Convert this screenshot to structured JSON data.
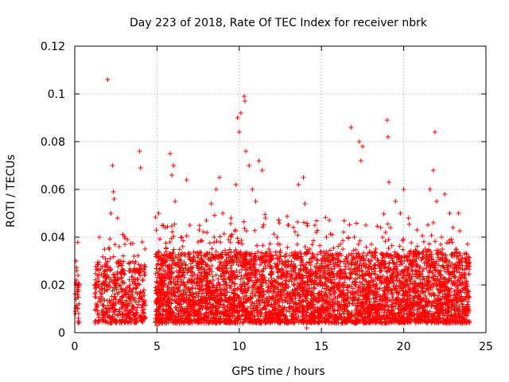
{
  "chart_data": {
    "type": "scatter",
    "title": "Day 223 of 2018, Rate Of TEC Index for receiver nbrk",
    "xlabel": "GPS time / hours",
    "ylabel": "ROTI / TECUs",
    "xlim": [
      0,
      25
    ],
    "ylim": [
      0,
      0.12
    ],
    "x_ticks": [
      0,
      5,
      10,
      15,
      20,
      25
    ],
    "x_tick_labels": [
      "0",
      "5",
      "10",
      "15",
      "20",
      "25"
    ],
    "y_ticks": [
      0,
      0.02,
      0.04,
      0.06,
      0.08,
      0.1,
      0.12
    ],
    "y_tick_labels": [
      "0",
      "0.02",
      "0.04",
      "0.06",
      "0.08",
      "0.1",
      "0.12"
    ],
    "grid": true,
    "marker": "+",
    "series": [
      {
        "name": "ROTI",
        "color": "#ff0000",
        "points": [
          [
            0.05,
            0.008
          ],
          [
            0.08,
            0.014
          ],
          [
            0.1,
            0.022
          ],
          [
            0.12,
            0.026
          ],
          [
            0.15,
            0.018
          ],
          [
            0.18,
            0.01
          ],
          [
            0.2,
            0.024
          ],
          [
            0.22,
            0.006
          ],
          [
            1.3,
            0.012
          ],
          [
            1.4,
            0.02
          ],
          [
            1.5,
            0.04
          ],
          [
            1.6,
            0.016
          ],
          [
            1.8,
            0.008
          ],
          [
            1.9,
            0.028
          ],
          [
            2.0,
            0.106
          ],
          [
            2.1,
            0.035
          ],
          [
            2.2,
            0.05
          ],
          [
            2.3,
            0.07
          ],
          [
            2.35,
            0.059
          ],
          [
            2.4,
            0.056
          ],
          [
            2.5,
            0.022
          ],
          [
            2.6,
            0.048
          ],
          [
            2.7,
            0.036
          ],
          [
            2.8,
            0.03
          ],
          [
            2.9,
            0.018
          ],
          [
            3.0,
            0.026
          ],
          [
            3.2,
            0.039
          ],
          [
            3.4,
            0.014
          ],
          [
            3.6,
            0.032
          ],
          [
            3.8,
            0.02
          ],
          [
            3.95,
            0.076
          ],
          [
            4.0,
            0.069
          ],
          [
            4.1,
            0.038
          ],
          [
            4.2,
            0.012
          ],
          [
            5.0,
            0.003
          ],
          [
            5.1,
            0.05
          ],
          [
            5.3,
            0.03
          ],
          [
            5.5,
            0.044
          ],
          [
            5.8,
            0.075
          ],
          [
            5.9,
            0.066
          ],
          [
            6.0,
            0.07
          ],
          [
            6.1,
            0.055
          ],
          [
            6.3,
            0.02
          ],
          [
            6.5,
            0.04
          ],
          [
            6.8,
            0.064
          ],
          [
            7.0,
            0.045
          ],
          [
            7.2,
            0.015
          ],
          [
            7.5,
            0.038
          ],
          [
            7.8,
            0.03
          ],
          [
            8.0,
            0.047
          ],
          [
            8.3,
            0.054
          ],
          [
            8.6,
            0.06
          ],
          [
            8.8,
            0.065
          ],
          [
            9.0,
            0.05
          ],
          [
            9.2,
            0.02
          ],
          [
            9.5,
            0.048
          ],
          [
            9.8,
            0.062
          ],
          [
            9.9,
            0.09
          ],
          [
            10.0,
            0.084
          ],
          [
            10.1,
            0.092
          ],
          [
            10.3,
            0.099
          ],
          [
            10.35,
            0.097
          ],
          [
            10.4,
            0.076
          ],
          [
            10.6,
            0.07
          ],
          [
            10.8,
            0.06
          ],
          [
            11.0,
            0.055
          ],
          [
            11.2,
            0.072
          ],
          [
            11.4,
            0.068
          ],
          [
            11.6,
            0.048
          ],
          [
            11.8,
            0.035
          ],
          [
            12.0,
            0.025
          ],
          [
            12.3,
            0.04
          ],
          [
            12.6,
            0.03
          ],
          [
            13.0,
            0.045
          ],
          [
            13.3,
            0.02
          ],
          [
            13.6,
            0.062
          ],
          [
            13.9,
            0.065
          ],
          [
            14.0,
            0.054
          ],
          [
            14.1,
            0.002
          ],
          [
            14.3,
            0.035
          ],
          [
            14.6,
            0.045
          ],
          [
            15.0,
            0.03
          ],
          [
            15.3,
            0.04
          ],
          [
            15.6,
            0.025
          ],
          [
            16.0,
            0.015
          ],
          [
            16.3,
            0.035
          ],
          [
            16.8,
            0.086
          ],
          [
            17.0,
            0.04
          ],
          [
            17.3,
            0.08
          ],
          [
            17.4,
            0.072
          ],
          [
            17.5,
            0.078
          ],
          [
            17.7,
            0.045
          ],
          [
            18.0,
            0.03
          ],
          [
            18.3,
            0.035
          ],
          [
            18.6,
            0.044
          ],
          [
            18.9,
            0.042
          ],
          [
            19.0,
            0.089
          ],
          [
            19.05,
            0.082
          ],
          [
            19.1,
            0.063
          ],
          [
            19.2,
            0.044
          ],
          [
            19.5,
            0.055
          ],
          [
            19.8,
            0.05
          ],
          [
            20.0,
            0.06
          ],
          [
            20.3,
            0.048
          ],
          [
            20.6,
            0.03
          ],
          [
            21.0,
            0.02
          ],
          [
            21.3,
            0.035
          ],
          [
            21.6,
            0.06
          ],
          [
            21.8,
            0.068
          ],
          [
            21.9,
            0.084
          ],
          [
            22.0,
            0.055
          ],
          [
            22.3,
            0.04
          ],
          [
            22.5,
            0.058
          ],
          [
            22.8,
            0.05
          ],
          [
            23.0,
            0.044
          ],
          [
            23.2,
            0.035
          ],
          [
            23.5,
            0.03
          ],
          [
            23.8,
            0.02
          ]
        ]
      }
    ],
    "bands": [
      {
        "x_start": 0.0,
        "x_end": 0.28,
        "low": 0.004,
        "high": 0.022,
        "density": 0.6
      },
      {
        "x_start": 1.2,
        "x_end": 4.3,
        "low": 0.004,
        "high": 0.03,
        "density": 1.0
      },
      {
        "x_start": 4.9,
        "x_end": 24.0,
        "low": 0.004,
        "high": 0.034,
        "density": 1.6
      }
    ]
  }
}
